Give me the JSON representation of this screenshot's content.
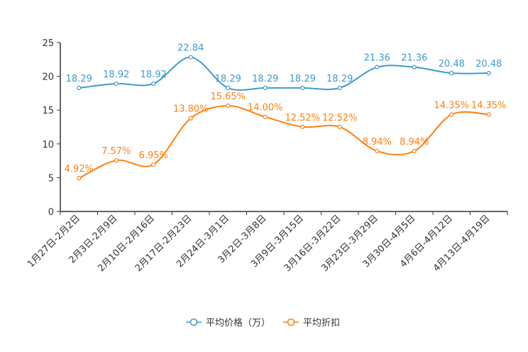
{
  "chart_data": {
    "type": "line",
    "title": "",
    "xlabel": "",
    "ylabel": "",
    "ylim": [
      0,
      25
    ],
    "yticks": [
      0,
      5,
      10,
      15,
      20,
      25
    ],
    "grid": false,
    "legend_position": "bottom-center",
    "categories": [
      "1月27日-2月2日",
      "2月3日-2月9日",
      "2月10日-2月16日",
      "2月17日-2月23日",
      "2月24日-3月1日",
      "3月2日-3月8日",
      "3月9日-3月15日",
      "3月16日-3月22日",
      "3月23日-3月29日",
      "3月30日-4月5日",
      "4月6日-4月12日",
      "4月13日-4月19日"
    ],
    "series": [
      {
        "name": "平均价格（万）",
        "color": "#3d9bcc",
        "values": [
          18.29,
          18.92,
          18.92,
          22.84,
          18.29,
          18.29,
          18.29,
          18.29,
          21.36,
          21.36,
          20.48,
          20.48
        ],
        "labels": [
          "18.29",
          "18.92",
          "18.92",
          "22.84",
          "18.29",
          "18.29",
          "18.29",
          "18.29",
          "21.36",
          "21.36",
          "20.48",
          "20.48"
        ]
      },
      {
        "name": "平均折扣",
        "color": "#ff7f0e",
        "values": [
          4.92,
          7.57,
          6.95,
          13.8,
          15.65,
          14.0,
          12.52,
          12.52,
          8.94,
          8.94,
          14.35,
          14.35
        ],
        "labels": [
          "4.92%",
          "7.57%",
          "6.95%",
          "13.80%",
          "15.65%",
          "14.00%",
          "12.52%",
          "12.52%",
          "8.94%",
          "8.94%",
          "14.35%",
          "14.35%"
        ]
      }
    ]
  }
}
